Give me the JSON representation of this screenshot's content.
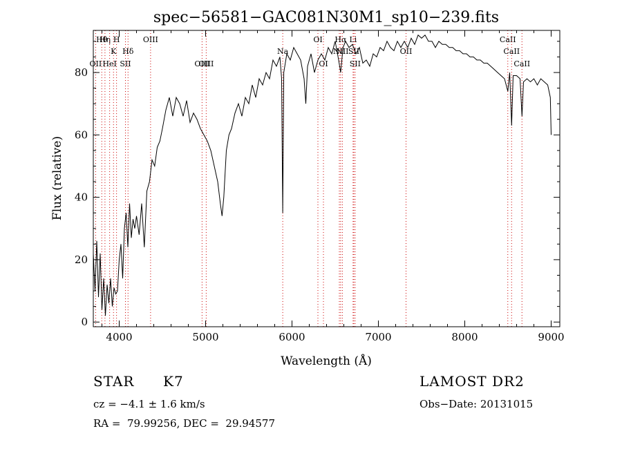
{
  "chart_data": {
    "type": "line",
    "title": "spec−56581−GAC081N30M1_sp10−239.fits",
    "xlabel": "Wavelength (Å)",
    "ylabel": "Flux (relative)",
    "xlim": [
      3700,
      9100
    ],
    "ylim": [
      -1.5,
      93.5
    ],
    "x_ticks": [
      4000,
      5000,
      6000,
      7000,
      8000,
      9000
    ],
    "y_ticks": [
      0,
      20,
      40,
      60,
      80
    ],
    "grid": false,
    "line_color": "#000000",
    "marker_color": "#cc0000",
    "series": [
      {
        "values": [
          [
            3700,
            22
          ],
          [
            3720,
            10
          ],
          [
            3740,
            26
          ],
          [
            3760,
            8
          ],
          [
            3780,
            22
          ],
          [
            3800,
            4
          ],
          [
            3820,
            14
          ],
          [
            3840,
            2
          ],
          [
            3860,
            12
          ],
          [
            3880,
            6
          ],
          [
            3900,
            14
          ],
          [
            3920,
            5
          ],
          [
            3940,
            11
          ],
          [
            3960,
            9
          ],
          [
            3980,
            10
          ],
          [
            4000,
            20
          ],
          [
            4020,
            25
          ],
          [
            4040,
            14
          ],
          [
            4060,
            30
          ],
          [
            4080,
            35
          ],
          [
            4100,
            24
          ],
          [
            4120,
            38
          ],
          [
            4140,
            27
          ],
          [
            4160,
            33
          ],
          [
            4180,
            30
          ],
          [
            4200,
            34
          ],
          [
            4230,
            28
          ],
          [
            4260,
            38
          ],
          [
            4290,
            24
          ],
          [
            4320,
            42
          ],
          [
            4350,
            45
          ],
          [
            4380,
            52
          ],
          [
            4410,
            50
          ],
          [
            4440,
            56
          ],
          [
            4470,
            58
          ],
          [
            4500,
            62
          ],
          [
            4540,
            68
          ],
          [
            4580,
            72
          ],
          [
            4620,
            66
          ],
          [
            4660,
            72
          ],
          [
            4700,
            70
          ],
          [
            4740,
            66
          ],
          [
            4780,
            71
          ],
          [
            4820,
            64
          ],
          [
            4860,
            67
          ],
          [
            4900,
            65
          ],
          [
            4940,
            62
          ],
          [
            4980,
            60
          ],
          [
            5020,
            58
          ],
          [
            5060,
            55
          ],
          [
            5100,
            50
          ],
          [
            5140,
            45
          ],
          [
            5170,
            38
          ],
          [
            5190,
            34
          ],
          [
            5210,
            40
          ],
          [
            5240,
            55
          ],
          [
            5270,
            60
          ],
          [
            5300,
            62
          ],
          [
            5340,
            67
          ],
          [
            5380,
            70
          ],
          [
            5420,
            66
          ],
          [
            5460,
            72
          ],
          [
            5500,
            70
          ],
          [
            5540,
            76
          ],
          [
            5580,
            72
          ],
          [
            5620,
            78
          ],
          [
            5660,
            76
          ],
          [
            5700,
            80
          ],
          [
            5740,
            78
          ],
          [
            5780,
            84
          ],
          [
            5820,
            82
          ],
          [
            5860,
            85
          ],
          [
            5880,
            78
          ],
          [
            5893,
            35
          ],
          [
            5905,
            80
          ],
          [
            5940,
            86
          ],
          [
            5980,
            84
          ],
          [
            6020,
            88
          ],
          [
            6060,
            86
          ],
          [
            6100,
            84
          ],
          [
            6140,
            78
          ],
          [
            6160,
            70
          ],
          [
            6180,
            82
          ],
          [
            6220,
            86
          ],
          [
            6260,
            80
          ],
          [
            6300,
            84
          ],
          [
            6340,
            86
          ],
          [
            6380,
            84
          ],
          [
            6420,
            88
          ],
          [
            6460,
            86
          ],
          [
            6500,
            90
          ],
          [
            6540,
            84
          ],
          [
            6563,
            80
          ],
          [
            6590,
            88
          ],
          [
            6620,
            90
          ],
          [
            6660,
            88
          ],
          [
            6700,
            89
          ],
          [
            6740,
            86
          ],
          [
            6780,
            88
          ],
          [
            6820,
            83
          ],
          [
            6860,
            84
          ],
          [
            6900,
            82
          ],
          [
            6940,
            86
          ],
          [
            6980,
            85
          ],
          [
            7020,
            88
          ],
          [
            7060,
            87
          ],
          [
            7100,
            90
          ],
          [
            7140,
            88
          ],
          [
            7180,
            87
          ],
          [
            7220,
            90
          ],
          [
            7260,
            88
          ],
          [
            7300,
            90
          ],
          [
            7340,
            88
          ],
          [
            7380,
            91
          ],
          [
            7420,
            89
          ],
          [
            7460,
            92
          ],
          [
            7500,
            91
          ],
          [
            7540,
            92
          ],
          [
            7580,
            90
          ],
          [
            7620,
            90
          ],
          [
            7660,
            88
          ],
          [
            7700,
            90
          ],
          [
            7740,
            89
          ],
          [
            7780,
            89
          ],
          [
            7820,
            88
          ],
          [
            7860,
            88
          ],
          [
            7900,
            87
          ],
          [
            7940,
            87
          ],
          [
            7980,
            86
          ],
          [
            8020,
            86
          ],
          [
            8060,
            85
          ],
          [
            8100,
            85
          ],
          [
            8140,
            84
          ],
          [
            8180,
            84
          ],
          [
            8220,
            83
          ],
          [
            8260,
            83
          ],
          [
            8300,
            82
          ],
          [
            8340,
            81
          ],
          [
            8380,
            80
          ],
          [
            8420,
            79
          ],
          [
            8460,
            78
          ],
          [
            8498,
            74
          ],
          [
            8520,
            80
          ],
          [
            8542,
            63
          ],
          [
            8560,
            79
          ],
          [
            8600,
            79
          ],
          [
            8640,
            78
          ],
          [
            8662,
            66
          ],
          [
            8680,
            77
          ],
          [
            8720,
            78
          ],
          [
            8760,
            77
          ],
          [
            8800,
            78
          ],
          [
            8840,
            76
          ],
          [
            8880,
            78
          ],
          [
            8920,
            77
          ],
          [
            8960,
            76
          ],
          [
            8990,
            72
          ],
          [
            9000,
            60
          ]
        ]
      }
    ],
    "line_markers": [
      {
        "label": "OII",
        "x": 3727,
        "row": 3
      },
      {
        "label": "Hθ",
        "x": 3798,
        "row": 1
      },
      {
        "label": "Hη",
        "x": 3835,
        "row": 1
      },
      {
        "label": "HeI",
        "x": 3889,
        "row": 3
      },
      {
        "label": "K",
        "x": 3934,
        "row": 2
      },
      {
        "label": "H",
        "x": 3969,
        "row": 1
      },
      {
        "label": "SII",
        "x": 4072,
        "row": 3
      },
      {
        "label": "Hδ",
        "x": 4102,
        "row": 2
      },
      {
        "label": "OIII",
        "x": 4363,
        "row": 1
      },
      {
        "label": "OIII",
        "x": 4959,
        "row": 3
      },
      {
        "label": "OIII",
        "x": 5007,
        "row": 3
      },
      {
        "label": "Na",
        "x": 5893,
        "row": 2
      },
      {
        "label": "OI",
        "x": 6300,
        "row": 1
      },
      {
        "label": "OI",
        "x": 6364,
        "row": 3
      },
      {
        "label": "NII",
        "x": 6548,
        "row": 2
      },
      {
        "label": "Hα",
        "x": 6563,
        "row": 1
      },
      {
        "label": "NII",
        "x": 6583,
        "row": 2
      },
      {
        "label": "Li",
        "x": 6707,
        "row": 1
      },
      {
        "label": "SII",
        "x": 6716,
        "row": 2
      },
      {
        "label": "SII",
        "x": 6731,
        "row": 3
      },
      {
        "label": "OII",
        "x": 7320,
        "row": 2
      },
      {
        "label": "CaII",
        "x": 8498,
        "row": 1
      },
      {
        "label": "CaII",
        "x": 8542,
        "row": 2
      },
      {
        "label": "CaII",
        "x": 8662,
        "row": 3
      }
    ]
  },
  "info": {
    "object_class": "STAR",
    "subclass": "K7",
    "survey": "LAMOST DR2",
    "redshift_line": "cz = −4.1 ± 1.6 km/s",
    "obs_date": "Obs−Date: 20131015",
    "coords_line": "RA =  79.99256, DEC =  29.94577"
  }
}
